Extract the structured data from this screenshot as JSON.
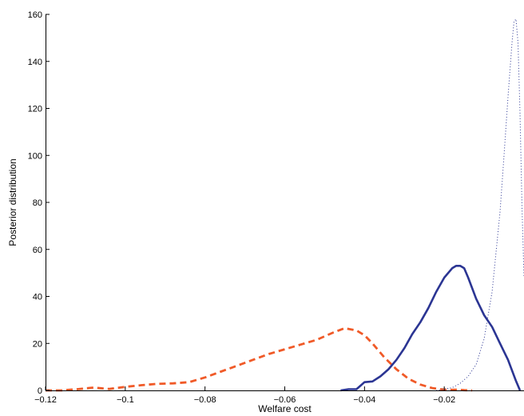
{
  "chart_data": {
    "type": "line",
    "xlabel": "Welfare cost",
    "ylabel": "Posterior distribution",
    "xlim": [
      -0.12,
      0.0
    ],
    "ylim": [
      0,
      160
    ],
    "xticks": [
      -0.12,
      -0.1,
      -0.08,
      -0.06,
      -0.04,
      -0.02
    ],
    "xtick_labels": [
      "−0.12",
      "−0.1",
      "−0.08",
      "−0.06",
      "−0.04",
      "−0.02"
    ],
    "yticks": [
      0,
      20,
      40,
      60,
      80,
      100,
      120,
      140,
      160
    ],
    "ytick_labels": [
      "0",
      "20",
      "40",
      "60",
      "80",
      "100",
      "120",
      "140",
      "160"
    ],
    "grid": false,
    "series": [
      {
        "style": "dashed",
        "color": "#f05a28",
        "x": [
          -0.12,
          -0.116,
          -0.112,
          -0.108,
          -0.104,
          -0.1,
          -0.096,
          -0.092,
          -0.088,
          -0.084,
          -0.08,
          -0.076,
          -0.072,
          -0.068,
          -0.064,
          -0.06,
          -0.056,
          -0.052,
          -0.048,
          -0.045,
          -0.042,
          -0.04,
          -0.038,
          -0.035,
          -0.032,
          -0.029,
          -0.026,
          -0.023,
          -0.021,
          -0.019,
          -0.017,
          -0.015,
          -0.013
        ],
        "y": [
          0,
          0,
          0.5,
          1.2,
          0.6,
          1.5,
          2.2,
          2.8,
          3.0,
          3.5,
          5.5,
          8,
          10.5,
          13,
          15.5,
          17.5,
          19.5,
          21.5,
          24.5,
          26.5,
          25.5,
          23.5,
          20,
          14,
          9,
          5,
          2.5,
          1,
          0.5,
          0.2,
          0.3,
          0.1,
          0
        ]
      },
      {
        "style": "solid",
        "color": "#2b3593",
        "x": [
          -0.046,
          -0.044,
          -0.042,
          -0.041,
          -0.04,
          -0.038,
          -0.036,
          -0.034,
          -0.032,
          -0.03,
          -0.028,
          -0.026,
          -0.024,
          -0.022,
          -0.02,
          -0.018,
          -0.017,
          -0.016,
          -0.015,
          -0.014,
          -0.012,
          -0.01,
          -0.008,
          -0.006,
          -0.004,
          -0.002,
          -0.001
        ],
        "y": [
          0,
          0.5,
          0.5,
          2,
          3.5,
          3.8,
          6,
          9,
          13,
          18,
          24,
          29,
          35,
          42,
          48,
          52,
          53,
          53,
          52,
          48,
          39,
          32,
          27,
          20,
          13,
          4,
          0
        ]
      },
      {
        "style": "dotted",
        "color": "#2b3593",
        "x": [
          -0.022,
          -0.02,
          -0.018,
          -0.016,
          -0.014,
          -0.012,
          -0.01,
          -0.008,
          -0.006,
          -0.005,
          -0.004,
          -0.003,
          -0.0025,
          -0.002,
          -0.0015,
          -0.001,
          -0.0005,
          0.0
        ],
        "y": [
          0,
          0.5,
          1.2,
          3,
          6,
          11,
          22,
          42,
          76,
          100,
          125,
          148,
          157,
          158,
          148,
          118,
          78,
          48
        ]
      }
    ]
  }
}
